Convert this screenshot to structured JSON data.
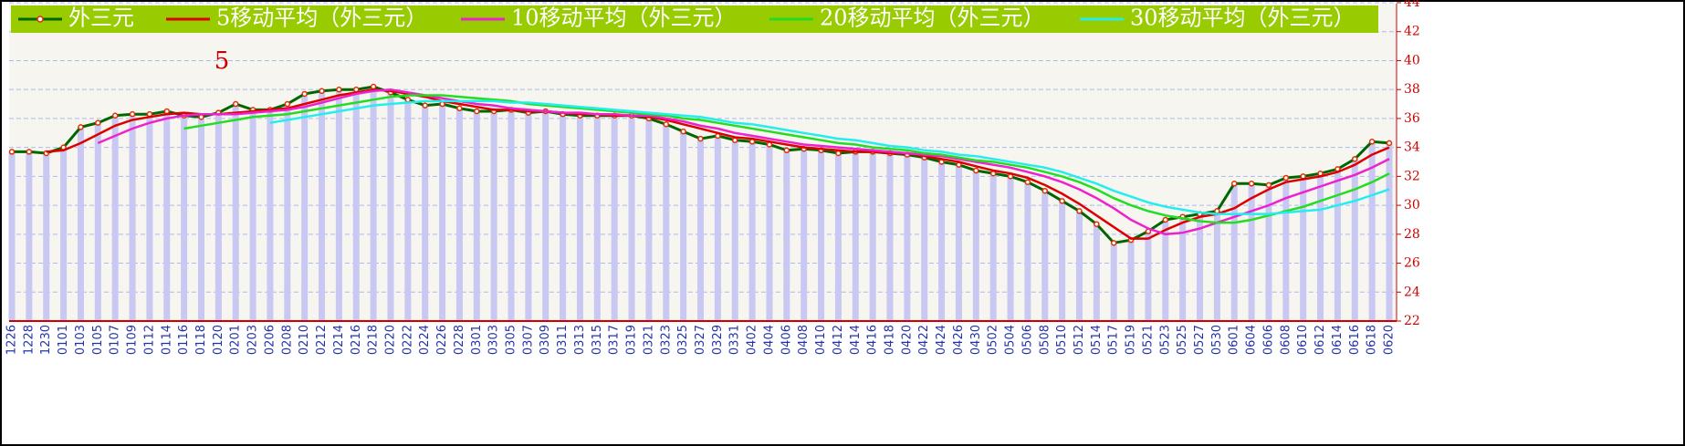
{
  "chart_data": {
    "type": "line",
    "annotation": "5",
    "categories": [
      "1226",
      "1228",
      "1230",
      "0101",
      "0103",
      "0105",
      "0107",
      "0109",
      "0112",
      "0114",
      "0116",
      "0118",
      "0120",
      "0201",
      "0203",
      "0206",
      "0208",
      "0210",
      "0212",
      "0214",
      "0216",
      "0218",
      "0220",
      "0222",
      "0224",
      "0226",
      "0228",
      "0301",
      "0303",
      "0305",
      "0307",
      "0309",
      "0311",
      "0313",
      "0315",
      "0317",
      "0319",
      "0321",
      "0323",
      "0325",
      "0327",
      "0329",
      "0331",
      "0402",
      "0404",
      "0406",
      "0408",
      "0410",
      "0412",
      "0414",
      "0416",
      "0418",
      "0420",
      "0422",
      "0424",
      "0426",
      "0430",
      "0502",
      "0504",
      "0506",
      "0508",
      "0510",
      "0512",
      "0514",
      "0517",
      "0519",
      "0521",
      "0523",
      "0525",
      "0527",
      "0530",
      "0601",
      "0604",
      "0606",
      "0608",
      "0610",
      "0612",
      "0614",
      "0616",
      "0618",
      "0620"
    ],
    "series": [
      {
        "name": "外三元",
        "color": "#006600",
        "marker_color": "#e03000",
        "bars": true,
        "values": [
          33.7,
          33.7,
          33.6,
          34.0,
          35.4,
          35.7,
          36.2,
          36.3,
          36.3,
          36.5,
          36.2,
          36.1,
          36.4,
          37.0,
          36.6,
          36.6,
          37.0,
          37.7,
          37.9,
          38.0,
          38.0,
          38.2,
          37.8,
          37.3,
          36.9,
          37.0,
          36.7,
          36.5,
          36.5,
          36.6,
          36.4,
          36.5,
          36.3,
          36.2,
          36.2,
          36.2,
          36.2,
          36.0,
          35.6,
          35.1,
          34.6,
          34.8,
          34.5,
          34.4,
          34.2,
          33.8,
          33.9,
          33.8,
          33.6,
          33.7,
          33.7,
          33.6,
          33.5,
          33.3,
          33.0,
          32.8,
          32.4,
          32.2,
          32.0,
          31.6,
          31.0,
          30.3,
          29.6,
          28.7,
          27.4,
          27.6,
          28.2,
          29.0,
          29.2,
          29.4,
          29.6,
          31.5,
          31.5,
          31.4,
          31.9,
          32.0,
          32.2,
          32.5,
          33.2,
          34.4,
          34.3
        ]
      },
      {
        "name": "5移动平均（外三元）",
        "color": "#dd0000",
        "values": [
          null,
          null,
          33.7,
          33.8,
          34.3,
          34.9,
          35.5,
          35.9,
          36.1,
          36.3,
          36.4,
          36.3,
          36.3,
          36.4,
          36.5,
          36.6,
          36.7,
          37.0,
          37.3,
          37.6,
          37.8,
          38.0,
          37.9,
          37.7,
          37.5,
          37.2,
          37.0,
          36.8,
          36.6,
          36.6,
          36.5,
          36.5,
          36.4,
          36.3,
          36.3,
          36.2,
          36.2,
          36.1,
          35.9,
          35.6,
          35.3,
          35.0,
          34.7,
          34.6,
          34.4,
          34.2,
          34.0,
          33.9,
          33.8,
          33.7,
          33.7,
          33.6,
          33.6,
          33.4,
          33.2,
          33.0,
          32.7,
          32.4,
          32.2,
          31.9,
          31.4,
          30.8,
          30.1,
          29.3,
          28.5,
          27.7,
          27.7,
          28.3,
          28.8,
          29.2,
          29.4,
          29.8,
          30.5,
          31.1,
          31.6,
          31.8,
          32.0,
          32.3,
          32.8,
          33.5,
          34.0
        ]
      },
      {
        "name": "10移动平均（外三元）",
        "color": "#ee22cc",
        "values": [
          null,
          null,
          null,
          null,
          null,
          34.3,
          34.8,
          35.3,
          35.7,
          36.0,
          36.2,
          36.3,
          36.3,
          36.3,
          36.4,
          36.5,
          36.6,
          36.8,
          37.1,
          37.4,
          37.7,
          37.9,
          38.0,
          37.8,
          37.6,
          37.4,
          37.2,
          37.0,
          36.9,
          36.7,
          36.6,
          36.5,
          36.4,
          36.4,
          36.3,
          36.3,
          36.2,
          36.2,
          36.0,
          35.8,
          35.5,
          35.3,
          35.0,
          34.8,
          34.6,
          34.4,
          34.2,
          34.1,
          34.0,
          33.9,
          33.8,
          33.7,
          33.6,
          33.5,
          33.4,
          33.2,
          33.0,
          32.8,
          32.6,
          32.3,
          32.0,
          31.6,
          31.1,
          30.5,
          29.8,
          29.0,
          28.4,
          28.0,
          28.1,
          28.4,
          28.8,
          29.2,
          29.6,
          30.0,
          30.5,
          30.9,
          31.3,
          31.7,
          32.1,
          32.6,
          33.2
        ]
      },
      {
        "name": "20移动平均（外三元）",
        "color": "#22dd22",
        "values": [
          null,
          null,
          null,
          null,
          null,
          null,
          null,
          null,
          null,
          null,
          35.3,
          35.5,
          35.7,
          35.9,
          36.1,
          36.2,
          36.3,
          36.5,
          36.7,
          36.9,
          37.1,
          37.3,
          37.5,
          37.6,
          37.6,
          37.6,
          37.5,
          37.4,
          37.3,
          37.2,
          37.0,
          36.9,
          36.8,
          36.7,
          36.6,
          36.5,
          36.4,
          36.3,
          36.2,
          36.0,
          35.9,
          35.7,
          35.5,
          35.3,
          35.1,
          34.9,
          34.7,
          34.5,
          34.3,
          34.2,
          34.0,
          33.9,
          33.8,
          33.6,
          33.5,
          33.3,
          33.1,
          33.0,
          32.8,
          32.6,
          32.3,
          32.0,
          31.6,
          31.1,
          30.5,
          30.0,
          29.6,
          29.3,
          29.1,
          28.9,
          28.8,
          28.8,
          29.0,
          29.3,
          29.6,
          29.9,
          30.3,
          30.7,
          31.1,
          31.6,
          32.2
        ]
      },
      {
        "name": "30移动平均（外三元）",
        "color": "#22eeee",
        "values": [
          null,
          null,
          null,
          null,
          null,
          null,
          null,
          null,
          null,
          null,
          null,
          null,
          null,
          null,
          null,
          35.7,
          35.9,
          36.1,
          36.3,
          36.5,
          36.7,
          36.9,
          37.0,
          37.1,
          37.2,
          37.2,
          37.2,
          37.2,
          37.2,
          37.1,
          37.1,
          37.0,
          36.9,
          36.8,
          36.7,
          36.6,
          36.5,
          36.4,
          36.3,
          36.2,
          36.1,
          35.9,
          35.7,
          35.6,
          35.4,
          35.2,
          35.0,
          34.8,
          34.6,
          34.5,
          34.3,
          34.1,
          34.0,
          33.8,
          33.7,
          33.5,
          33.4,
          33.2,
          33.0,
          32.8,
          32.6,
          32.3,
          31.9,
          31.5,
          31.0,
          30.6,
          30.2,
          29.9,
          29.7,
          29.5,
          29.4,
          29.4,
          29.4,
          29.4,
          29.5,
          29.6,
          29.7,
          30.0,
          30.3,
          30.7,
          31.1
        ]
      }
    ],
    "ylim": [
      22,
      44
    ],
    "yticks": [
      22,
      24,
      26,
      28,
      30,
      32,
      34,
      36,
      38,
      40,
      42,
      44
    ],
    "grid": true,
    "legend": "top"
  }
}
